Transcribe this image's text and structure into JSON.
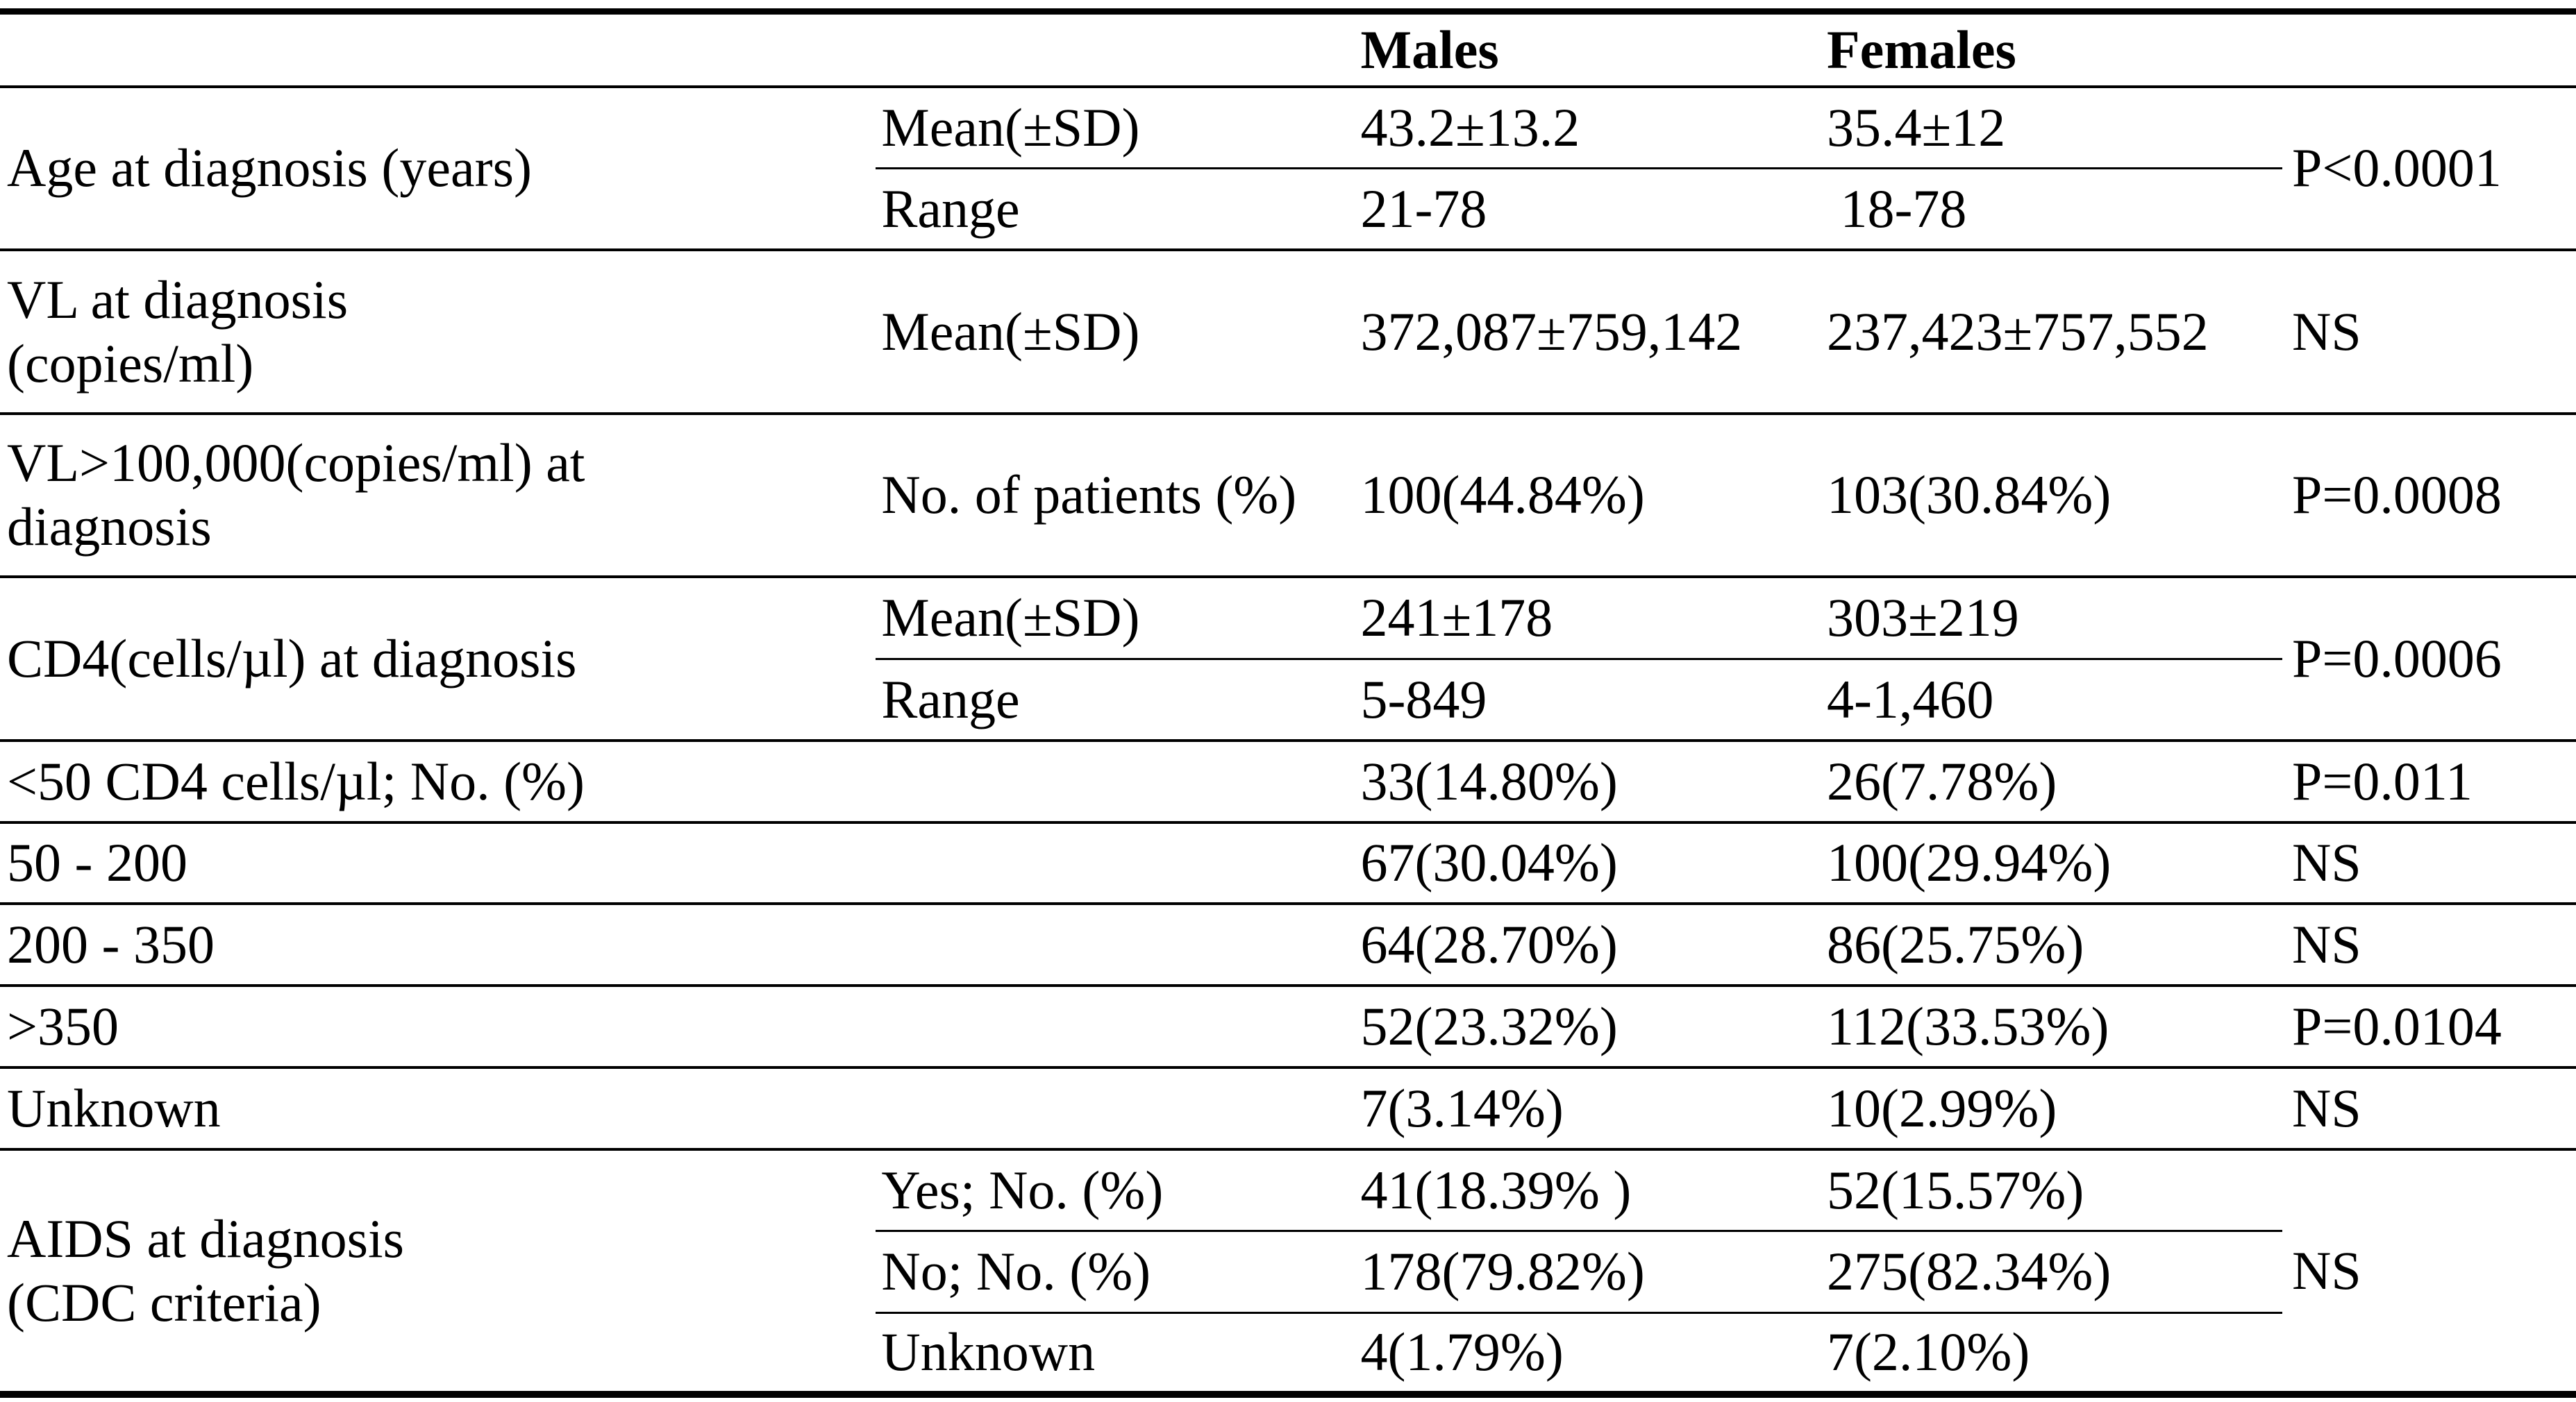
{
  "page": {
    "background_color": "#ffffff",
    "text_color": "#000000",
    "rule_color": "#000000"
  },
  "header": {
    "males": "Males",
    "females": "Females"
  },
  "groups": [
    {
      "label": "Age at diagnosis (years)",
      "p_value": "P<0.0001",
      "rows": [
        {
          "stat": "Mean(±SD)",
          "males": "43.2±13.2",
          "females": "35.4±12"
        },
        {
          "stat": "Range",
          "males": "21-78",
          "females": " 18-78"
        }
      ]
    },
    {
      "label": "VL at diagnosis\n(copies/ml)",
      "p_value": "NS",
      "rows": [
        {
          "stat": "Mean(±SD)",
          "males": "372,087±759,142",
          "females": "237,423±757,552"
        }
      ]
    },
    {
      "label": "VL>100,000(copies/ml) at\ndiagnosis",
      "p_value": "P=0.0008",
      "rows": [
        {
          "stat": "No. of patients (%)",
          "males": "100(44.84%)",
          "females": "103(30.84%)"
        }
      ]
    },
    {
      "label": "CD4(cells/µl) at diagnosis",
      "p_value": "P=0.0006",
      "rows": [
        {
          "stat": "Mean(±SD)",
          "males": "241±178",
          "females": "303±219"
        },
        {
          "stat": "Range",
          "males": "5-849",
          "females": "4-1,460"
        }
      ]
    },
    {
      "label": "<50 CD4 cells/µl; No. (%)",
      "p_value": "P=0.011",
      "rows": [
        {
          "stat": "",
          "males": "33(14.80%)",
          "females": "26(7.78%)"
        }
      ]
    },
    {
      "label": "50 - 200",
      "p_value": "NS",
      "rows": [
        {
          "stat": "",
          "males": "67(30.04%)",
          "females": "100(29.94%)"
        }
      ]
    },
    {
      "label": "200 - 350",
      "p_value": "NS",
      "rows": [
        {
          "stat": "",
          "males": "64(28.70%)",
          "females": "86(25.75%)"
        }
      ]
    },
    {
      "label": ">350",
      "p_value": "P=0.0104",
      "rows": [
        {
          "stat": "",
          "males": "52(23.32%)",
          "females": "112(33.53%)"
        }
      ]
    },
    {
      "label": "Unknown",
      "p_value": "NS",
      "rows": [
        {
          "stat": "",
          "males": "7(3.14%)",
          "females": "10(2.99%)"
        }
      ]
    },
    {
      "label": "AIDS at diagnosis\n(CDC criteria)",
      "p_value": "NS",
      "rows": [
        {
          "stat": "Yes; No. (%)",
          "males": "41(18.39% )",
          "females": "52(15.57%)"
        },
        {
          "stat": "No; No. (%)",
          "males": "178(79.82%)",
          "females": "275(82.34%)"
        },
        {
          "stat": "Unknown",
          "males": "4(1.79%)",
          "females": "7(2.10%)"
        }
      ]
    }
  ]
}
